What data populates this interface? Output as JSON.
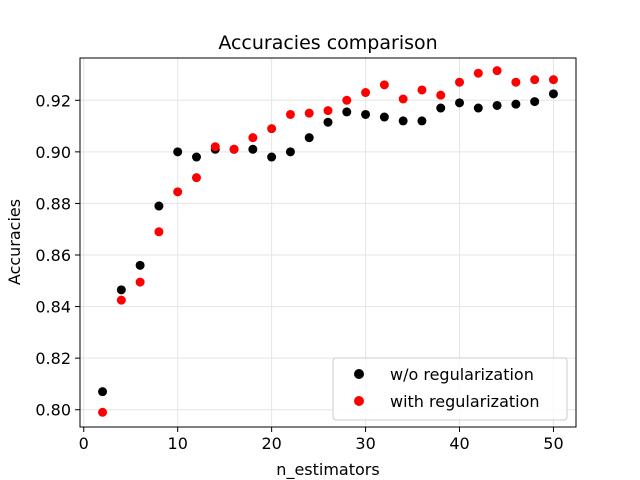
{
  "chart_data": {
    "type": "scatter",
    "title": "Accuracies comparison",
    "xlabel": "n_estimators",
    "ylabel": "Accuracies",
    "xlim": [
      -0.4,
      52.4
    ],
    "ylim": [
      0.7933,
      0.9364
    ],
    "xticks": [
      0,
      10,
      20,
      30,
      40,
      50
    ],
    "yticks": [
      0.8,
      0.82,
      0.84,
      0.86,
      0.88,
      0.9,
      0.92
    ],
    "ytick_labels": [
      "0.80",
      "0.82",
      "0.84",
      "0.86",
      "0.88",
      "0.90",
      "0.92"
    ],
    "grid": true,
    "legend_position": "lower-right",
    "series": [
      {
        "name": "w/o regularization",
        "color": "#000000",
        "x": [
          2,
          4,
          6,
          8,
          10,
          12,
          14,
          16,
          18,
          20,
          22,
          24,
          26,
          28,
          30,
          32,
          34,
          36,
          38,
          40,
          42,
          44,
          46,
          48,
          50
        ],
        "y": [
          0.807,
          0.8465,
          0.856,
          0.879,
          0.9,
          0.898,
          0.901,
          0.901,
          0.901,
          0.898,
          0.9,
          0.9055,
          0.9115,
          0.9155,
          0.9145,
          0.9135,
          0.912,
          0.912,
          0.917,
          0.919,
          0.917,
          0.918,
          0.9185,
          0.9195,
          0.9225
        ]
      },
      {
        "name": "with regularization",
        "color": "#ff0000",
        "x": [
          2,
          4,
          6,
          8,
          10,
          12,
          14,
          16,
          18,
          20,
          22,
          24,
          26,
          28,
          30,
          32,
          34,
          36,
          38,
          40,
          42,
          44,
          46,
          48,
          50
        ],
        "y": [
          0.799,
          0.8425,
          0.8495,
          0.869,
          0.8845,
          0.89,
          0.902,
          0.901,
          0.9055,
          0.909,
          0.9145,
          0.915,
          0.916,
          0.92,
          0.923,
          0.926,
          0.9205,
          0.924,
          0.922,
          0.927,
          0.9305,
          0.9315,
          0.927,
          0.928,
          0.928
        ]
      }
    ]
  }
}
